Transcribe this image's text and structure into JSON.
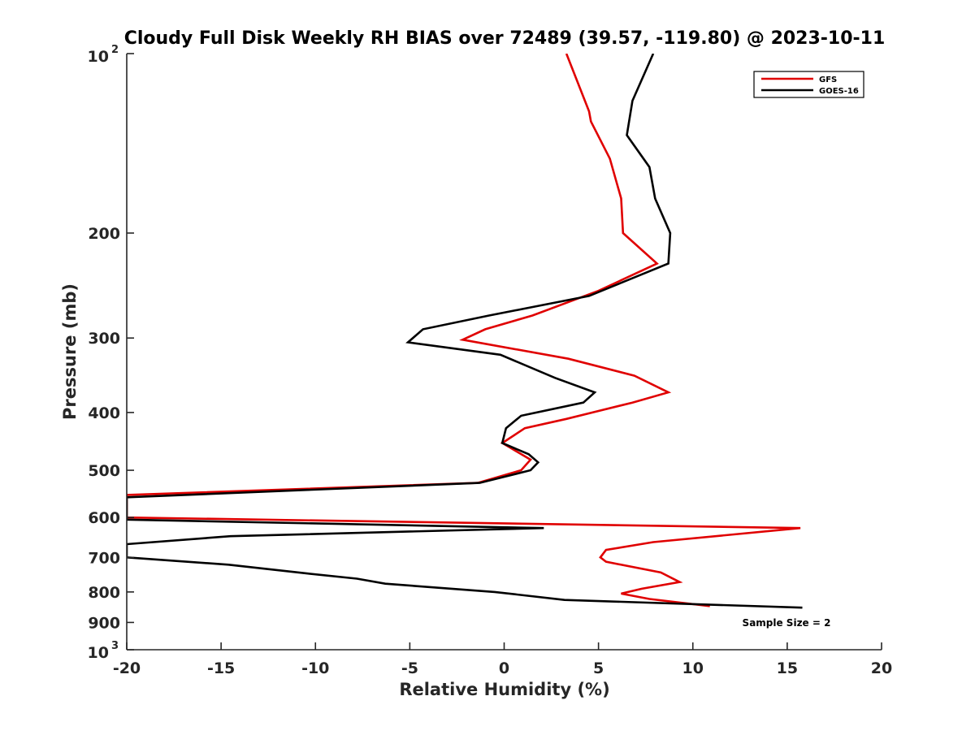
{
  "chart_data": {
    "type": "line",
    "title": "Cloudy Full Disk Weekly RH BIAS over 72489 (39.57, -119.80) @ 2023-10-11",
    "xlabel": "Relative Humidity (%)",
    "ylabel": "Pressure (mb)",
    "xlim": [
      -20,
      20
    ],
    "ylim": [
      100,
      1000
    ],
    "y_scale": "log",
    "y_reversed": true,
    "grid": false,
    "legend_position": "top-right",
    "x_ticks": [
      "-20",
      "-15",
      "-10",
      "-5",
      "0",
      "5",
      "10",
      "15",
      "20"
    ],
    "y_ticks": [
      {
        "value": 100,
        "base": "10",
        "exp": "2"
      },
      {
        "value": 200,
        "label": "200"
      },
      {
        "value": 300,
        "label": "300"
      },
      {
        "value": 400,
        "label": "400"
      },
      {
        "value": 500,
        "label": "500"
      },
      {
        "value": 600,
        "label": "600"
      },
      {
        "value": 700,
        "label": "700"
      },
      {
        "value": 800,
        "label": "800"
      },
      {
        "value": 900,
        "label": "900"
      },
      {
        "value": 1000,
        "base": "10",
        "exp": "3"
      }
    ],
    "annotation": "Sample Size = 2",
    "series": [
      {
        "name": "GFS",
        "color": "#e00000",
        "points": [
          [
            3.3,
            100
          ],
          [
            4.5,
            125
          ],
          [
            4.6,
            130
          ],
          [
            5.6,
            150
          ],
          [
            6.2,
            175
          ],
          [
            6.3,
            200
          ],
          [
            8.1,
            225
          ],
          [
            5.0,
            250
          ],
          [
            1.5,
            275
          ],
          [
            -1.0,
            290
          ],
          [
            -2.2,
            302
          ],
          [
            3.4,
            325
          ],
          [
            6.9,
            347
          ],
          [
            8.7,
            370
          ],
          [
            6.8,
            385
          ],
          [
            3.3,
            410
          ],
          [
            1.1,
            425
          ],
          [
            -0.1,
            450
          ],
          [
            1.4,
            480
          ],
          [
            0.9,
            500
          ],
          [
            -1.4,
            525
          ],
          [
            -20,
            550
          ],
          [
            -20,
            600
          ],
          [
            15.7,
            625
          ],
          [
            7.9,
            660
          ],
          [
            5.4,
            680
          ],
          [
            5.1,
            700
          ],
          [
            5.4,
            712
          ],
          [
            8.3,
            742
          ],
          [
            9.3,
            770
          ],
          [
            7.3,
            790
          ],
          [
            6.2,
            805
          ],
          [
            7.7,
            822
          ],
          [
            10.9,
            845
          ]
        ]
      },
      {
        "name": "GOES-16",
        "color": "#000000",
        "points": [
          [
            7.9,
            100
          ],
          [
            6.8,
            120
          ],
          [
            6.5,
            137
          ],
          [
            7.7,
            155
          ],
          [
            8.0,
            175
          ],
          [
            8.8,
            200
          ],
          [
            8.7,
            225
          ],
          [
            4.5,
            255
          ],
          [
            -0.8,
            275
          ],
          [
            -4.3,
            290
          ],
          [
            -5.1,
            305
          ],
          [
            -0.2,
            320
          ],
          [
            2.7,
            350
          ],
          [
            4.8,
            370
          ],
          [
            4.2,
            385
          ],
          [
            0.9,
            405
          ],
          [
            0.1,
            425
          ],
          [
            -0.1,
            450
          ],
          [
            1.3,
            470
          ],
          [
            1.8,
            485
          ],
          [
            1.4,
            500
          ],
          [
            -1.3,
            525
          ],
          [
            -20,
            555
          ],
          [
            -20,
            605
          ],
          [
            2.1,
            625
          ],
          [
            -14.5,
            645
          ],
          [
            -20,
            665
          ],
          [
            -20,
            700
          ],
          [
            -14.6,
            720
          ],
          [
            -10.4,
            745
          ],
          [
            -7.8,
            760
          ],
          [
            -6.3,
            775
          ],
          [
            -0.5,
            800
          ],
          [
            3.2,
            825
          ],
          [
            15.8,
            850
          ]
        ]
      }
    ]
  }
}
